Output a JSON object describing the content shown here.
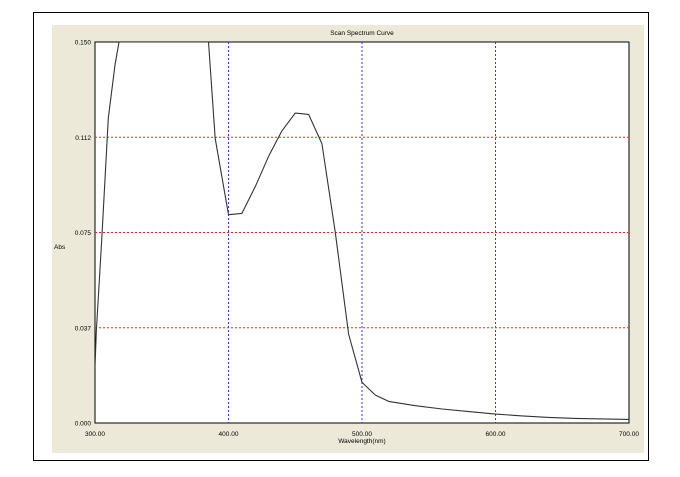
{
  "chart_data": {
    "type": "line",
    "title": "Scan Spectrum Curve",
    "xlabel": "Wavelength(nm)",
    "ylabel": "Abs",
    "xlim": [
      300,
      700
    ],
    "ylim": [
      0,
      0.15
    ],
    "x_ticks": [
      300,
      400,
      500,
      600,
      700
    ],
    "x_tick_labels": [
      "300.00",
      "400.00",
      "500.00",
      "600.00",
      "700.00"
    ],
    "y_ticks": [
      0,
      0.0375,
      0.075,
      0.1125,
      0.15
    ],
    "y_tick_labels": [
      "0.000",
      "0.037",
      "0.075",
      "0.112",
      "0.150"
    ],
    "grid": {
      "vertical_at": [
        400,
        500,
        600
      ],
      "horizontal_at": [
        0.0375,
        0.075,
        0.1125
      ],
      "vertical_color": "#3333ff",
      "horizontal_color": "#ff2222"
    },
    "series": [
      {
        "color": "#333333",
        "x": [
          300,
          301,
          305,
          310,
          315,
          318,
          385,
          390,
          400,
          410,
          420,
          430,
          440,
          450,
          460,
          470,
          480,
          490,
          500,
          510,
          520,
          540,
          560,
          580,
          600,
          620,
          640,
          660,
          680,
          700
        ],
        "y": [
          0.022,
          0.036,
          0.072,
          0.12,
          0.141,
          0.15,
          0.15,
          0.112,
          0.082,
          0.0825,
          0.093,
          0.105,
          0.115,
          0.122,
          0.1215,
          0.11,
          0.075,
          0.035,
          0.016,
          0.011,
          0.0085,
          0.0068,
          0.0055,
          0.0045,
          0.0035,
          0.0028,
          0.0022,
          0.0018,
          0.0016,
          0.0014
        ]
      }
    ]
  }
}
